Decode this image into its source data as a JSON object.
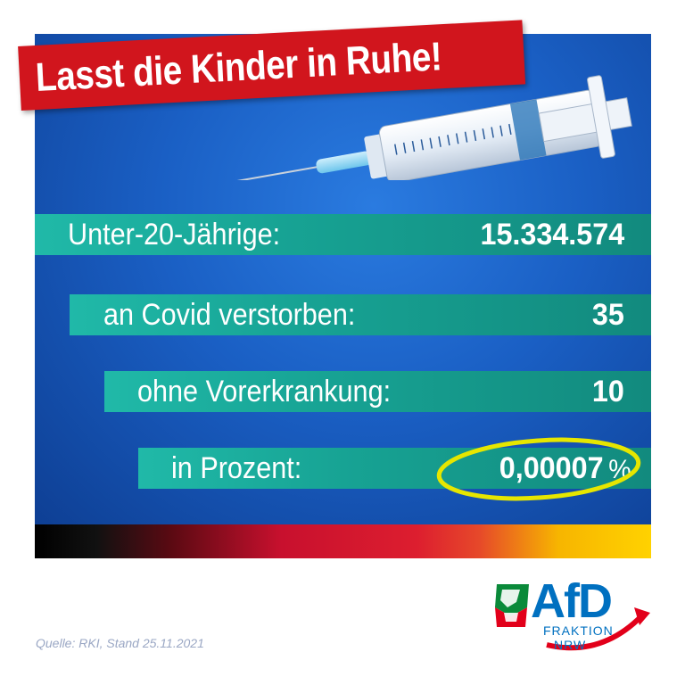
{
  "headline": "Lasst die Kinder in Ruhe!",
  "stats": [
    {
      "label": "Unter-20-Jährige:",
      "value": "15.334.574",
      "unit": ""
    },
    {
      "label": "an Covid verstorben:",
      "value": "35",
      "unit": ""
    },
    {
      "label": "ohne Vorerkrankung:",
      "value": "10",
      "unit": ""
    },
    {
      "label": "in Prozent:",
      "value": "0,00007",
      "unit": "%"
    }
  ],
  "logo": {
    "text": "AfD",
    "line1": "FRAKTION",
    "line2": "NRW"
  },
  "source": "Quelle: RKI, Stand 25.11.2021",
  "colors": {
    "panel_blue": "#1a5fc4",
    "headline_red": "#d1151d",
    "row_teal": "#17a394",
    "highlight_yellow": "#e6e600",
    "logo_blue": "#0070c0",
    "logo_red": "#e2001a"
  }
}
